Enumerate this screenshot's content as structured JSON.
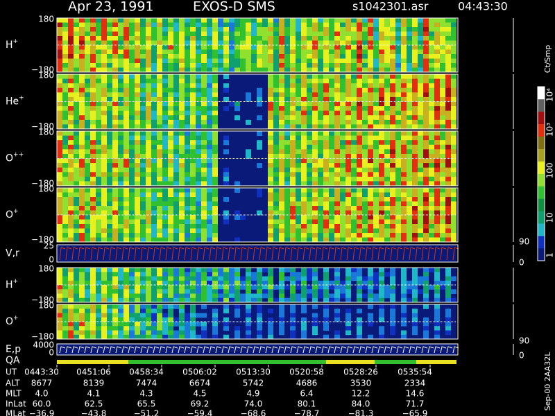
{
  "header": {
    "date": "Apr 23, 1991",
    "instrument": "EXOS-D SMS",
    "file": "s1042301.asr",
    "time": "04:43:30"
  },
  "panels": [
    {
      "label": "H",
      "sup": "+",
      "top": "180",
      "bottom": "−180"
    },
    {
      "label": "He",
      "sup": "+",
      "top": "180",
      "bottom": "−180"
    },
    {
      "label": "O",
      "sup": "++",
      "top": "180",
      "bottom": "−180"
    },
    {
      "label": "O",
      "sup": "+",
      "top": "180",
      "bottom": "−180"
    },
    {
      "label": "V,r",
      "top": "25",
      "bottom": "0",
      "right_top": "90",
      "right_bottom": "0"
    },
    {
      "label": "H",
      "sup": "+",
      "top": "180",
      "bottom": "−180"
    },
    {
      "label": "O",
      "sup": "+",
      "top": "180",
      "bottom": "−180"
    },
    {
      "label": "E,p",
      "top": "4000",
      "bottom": "0",
      "right_top": "90",
      "right_bottom": "0"
    }
  ],
  "qa_label": "QA",
  "colorbar": {
    "unit": "Ct/Smp",
    "labels": [
      "1",
      "10",
      "100",
      "10³",
      "10⁴"
    ]
  },
  "version": "Sep-00 2AA32L",
  "ephemeris": [
    {
      "name": "UT",
      "values": [
        "0443:30",
        "0451:06",
        "0458:34",
        "0506:02",
        "0513:30",
        "0520:58",
        "0528:26",
        "0535:54"
      ]
    },
    {
      "name": "ALT",
      "values": [
        "8677",
        "8139",
        "7474",
        "6674",
        "5742",
        "4686",
        "3530",
        "2334"
      ]
    },
    {
      "name": "MLT",
      "values": [
        "4.0",
        "4.1",
        "4.3",
        "4.5",
        "4.9",
        "6.4",
        "12.2",
        "14.6"
      ]
    },
    {
      "name": "InLat",
      "values": [
        "60.0",
        "62.5",
        "65.5",
        "69.2",
        "74.0",
        "80.1",
        "84.0",
        "71.7"
      ]
    },
    {
      "name": "MLat",
      "values": [
        "−36.9",
        "−43.8",
        "−51.2",
        "−59.4",
        "−68.6",
        "−78.7",
        "−81.3",
        "−65.9"
      ]
    }
  ]
}
